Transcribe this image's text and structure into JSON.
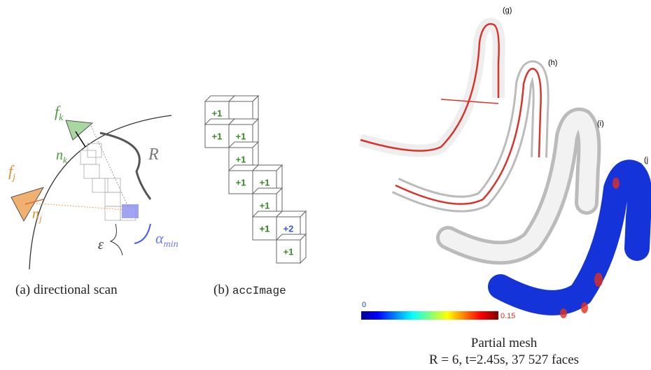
{
  "panel_a": {
    "f_k": {
      "symbol": "f",
      "subscript": "k"
    },
    "n_k": {
      "symbol": "n",
      "subscript": "k"
    },
    "R": "R",
    "f_j": {
      "symbol": "f",
      "subscript": "j"
    },
    "n_j": {
      "symbol": "n",
      "subscript": "j"
    },
    "alpha_min": {
      "symbol": "α",
      "subscript": "min"
    },
    "epsilon": "ε",
    "caption": "(a) directional scan"
  },
  "panel_b": {
    "cells": [
      "+1",
      "+1",
      "+1",
      "+1",
      "+1",
      "+1",
      "+1",
      "+1",
      "+1",
      "+2",
      "+1"
    ],
    "caption_prefix": "(b)",
    "caption_code": "accImage"
  },
  "panel_c": {
    "labels": [
      "(g)",
      "(h)",
      "(i)",
      "(j"
    ],
    "colorbar_min": "0",
    "colorbar_max": "0.15",
    "caption_line1": "Partial mesh",
    "caption_line2": "R = 6, t=2.45s, 37 527 faces"
  }
}
